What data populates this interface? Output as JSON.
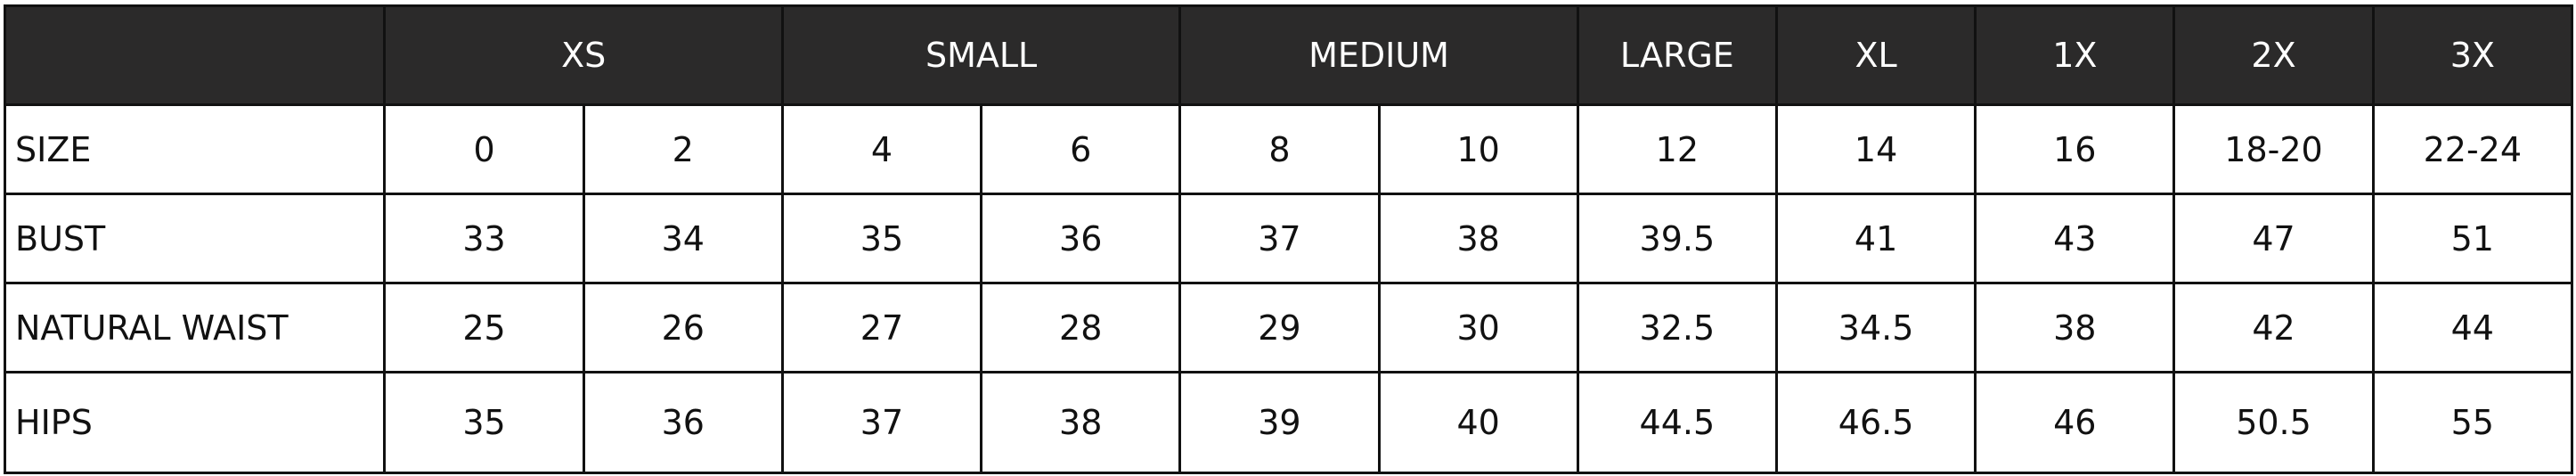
{
  "header": {
    "groups": [
      {
        "label": "XS",
        "span": 2
      },
      {
        "label": "SMALL",
        "span": 2
      },
      {
        "label": "MEDIUM",
        "span": 2
      },
      {
        "label": "LARGE",
        "span": 1
      },
      {
        "label": "XL",
        "span": 1
      },
      {
        "label": "1X",
        "span": 1
      },
      {
        "label": "2X",
        "span": 1
      },
      {
        "label": "3X",
        "span": 1
      }
    ]
  },
  "colors": {
    "header_bg": "#2b2a2a",
    "header_text": "#ffffff"
  },
  "rows": [
    {
      "label": "SIZE",
      "values": [
        "0",
        "2",
        "4",
        "6",
        "8",
        "10",
        "12",
        "14",
        "16",
        "18-20",
        "22-24"
      ]
    },
    {
      "label": "BUST",
      "values": [
        "33",
        "34",
        "35",
        "36",
        "37",
        "38",
        "39.5",
        "41",
        "43",
        "47",
        "51"
      ]
    },
    {
      "label": "NATURAL WAIST",
      "values": [
        "25",
        "26",
        "27",
        "28",
        "29",
        "30",
        "32.5",
        "34.5",
        "38",
        "42",
        "44"
      ]
    },
    {
      "label": "HIPS",
      "values": [
        "35",
        "36",
        "37",
        "38",
        "39",
        "40",
        "44.5",
        "46.5",
        "46",
        "50.5",
        "55"
      ]
    }
  ]
}
